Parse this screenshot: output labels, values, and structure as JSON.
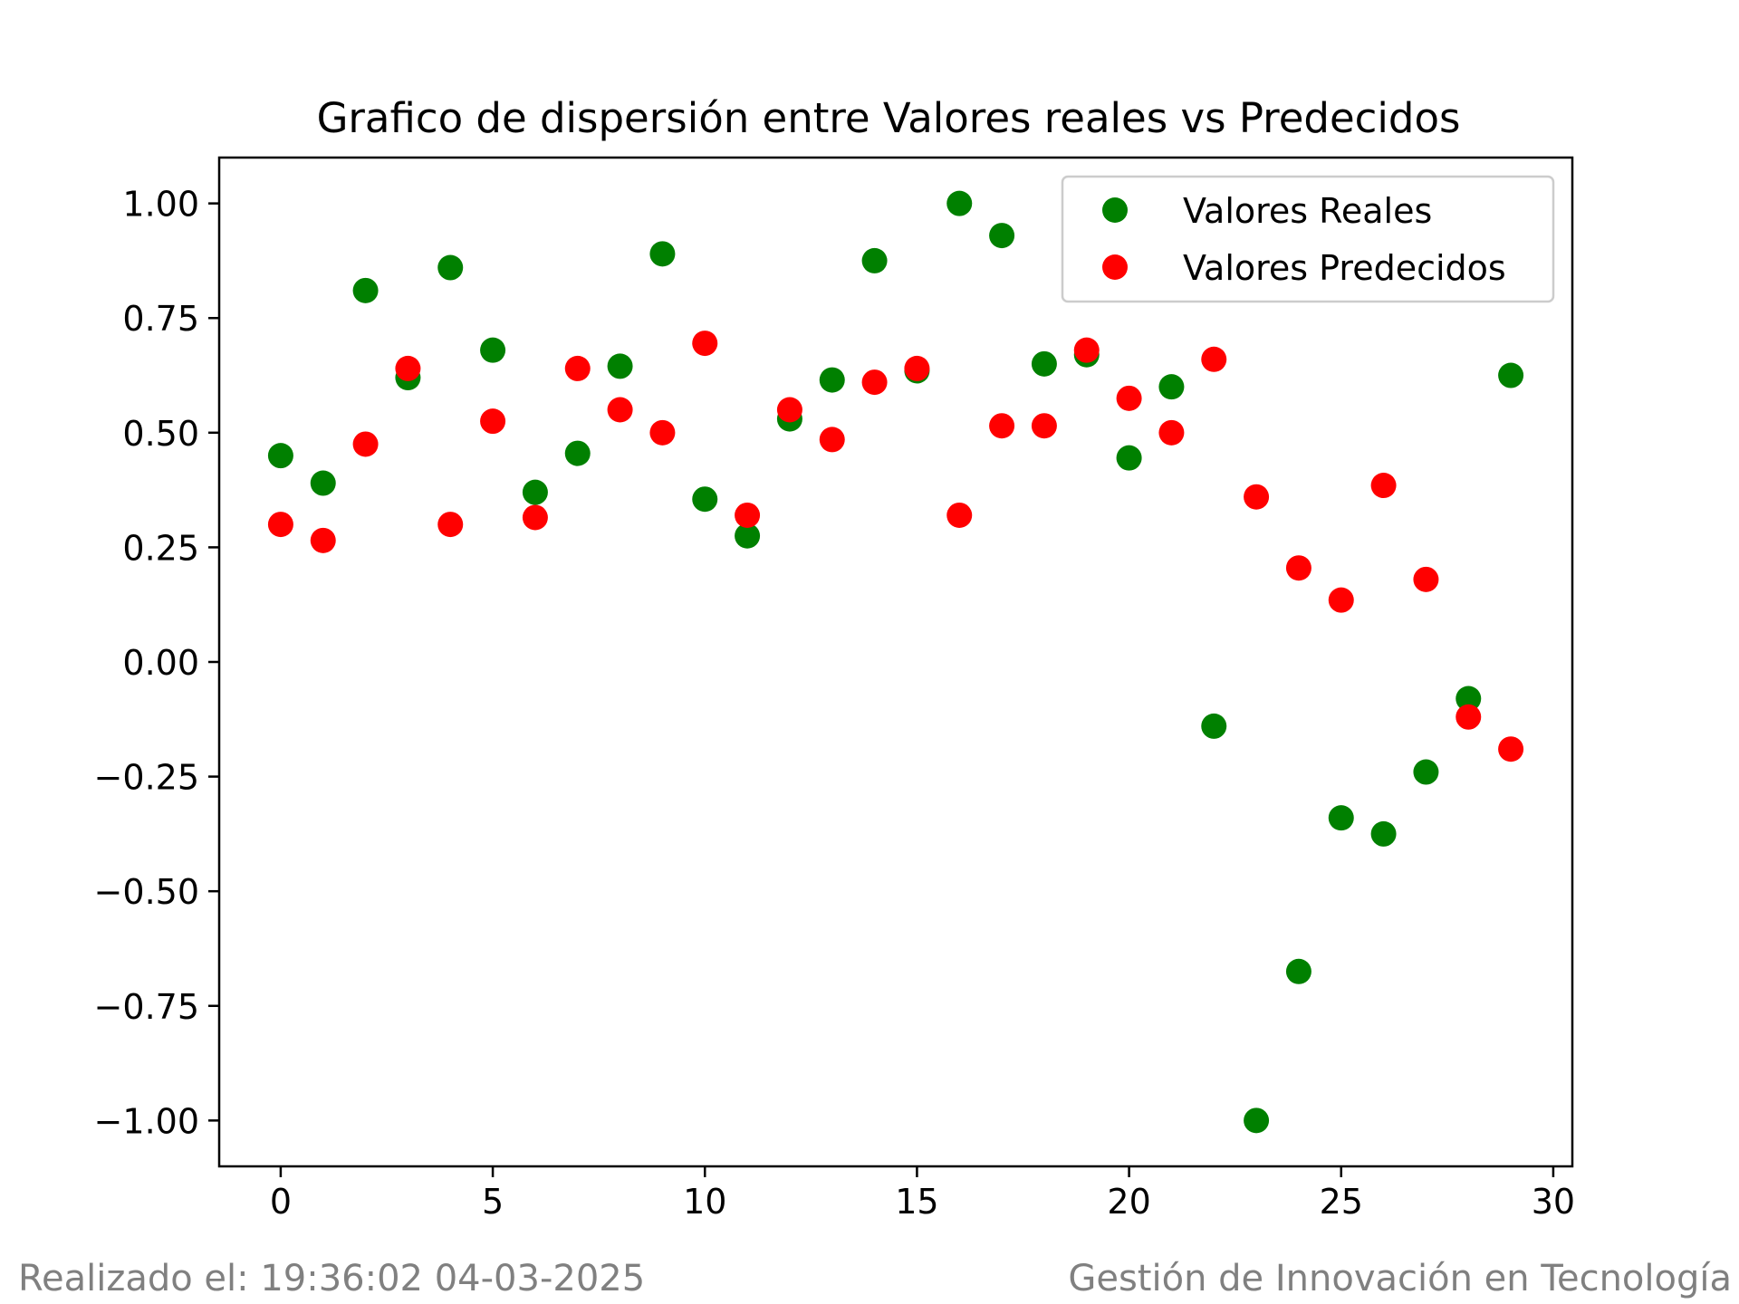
{
  "chart_data": {
    "type": "scatter",
    "title": "Grafico de dispersión entre Valores reales vs Predecidos",
    "xlabel": "",
    "ylabel": "",
    "xlim": [
      -1.45,
      30.45
    ],
    "ylim": [
      -1.1,
      1.1
    ],
    "x_ticks": [
      0,
      5,
      10,
      15,
      20,
      25,
      30
    ],
    "x_tick_labels": [
      "0",
      "5",
      "10",
      "15",
      "20",
      "25",
      "30"
    ],
    "y_ticks": [
      1.0,
      0.75,
      0.5,
      0.25,
      0.0,
      -0.25,
      -0.5,
      -0.75,
      -1.0
    ],
    "y_tick_labels": [
      "1.00",
      "0.75",
      "0.50",
      "0.25",
      "0.00",
      "−0.25",
      "−0.50",
      "−0.75",
      "−1.00"
    ],
    "grid": false,
    "legend_position": "top-right",
    "x": [
      0,
      1,
      2,
      3,
      4,
      5,
      6,
      7,
      8,
      9,
      10,
      11,
      12,
      13,
      14,
      15,
      16,
      17,
      18,
      19,
      20,
      21,
      22,
      23,
      24,
      25,
      26,
      27,
      28,
      29
    ],
    "series": [
      {
        "name": "Valores Reales",
        "color": "#008000",
        "values": [
          0.45,
          0.39,
          0.81,
          0.62,
          0.86,
          0.68,
          0.37,
          0.455,
          0.645,
          0.89,
          0.355,
          0.275,
          0.53,
          0.615,
          0.875,
          0.635,
          1.0,
          0.93,
          0.65,
          0.67,
          0.445,
          0.6,
          -0.14,
          -1.0,
          -0.675,
          -0.34,
          -0.375,
          -0.24,
          -0.08,
          0.625
        ]
      },
      {
        "name": "Valores Predecidos",
        "color": "#ff0000",
        "values": [
          0.3,
          0.265,
          0.475,
          0.64,
          0.3,
          0.525,
          0.315,
          0.64,
          0.55,
          0.5,
          0.695,
          0.32,
          0.55,
          0.485,
          0.61,
          0.64,
          0.32,
          0.515,
          0.515,
          0.68,
          0.575,
          0.5,
          0.66,
          0.36,
          0.205,
          0.135,
          0.385,
          0.18,
          -0.12,
          -0.19
        ]
      }
    ]
  },
  "footer": {
    "left": "Realizado el: 19:36:02 04-03-2025",
    "right": "Gestión de Innovación en Tecnología"
  }
}
